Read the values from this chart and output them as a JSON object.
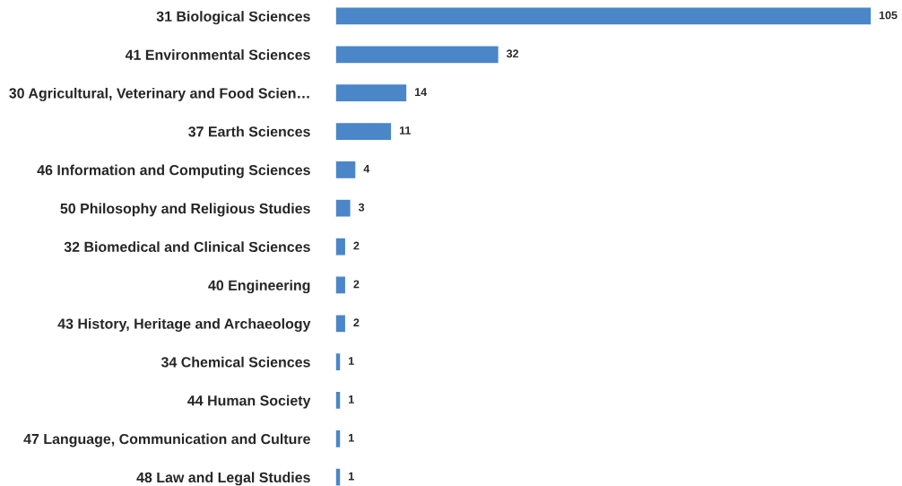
{
  "chart_data": {
    "type": "bar",
    "orientation": "horizontal",
    "categories": [
      "31 Biological Sciences",
      "41 Environmental Sciences",
      "30 Agricultural, Veterinary and Food Scien…",
      "37 Earth Sciences",
      "46 Information and Computing Sciences",
      "50 Philosophy and Religious Studies",
      "32 Biomedical and Clinical Sciences",
      "40 Engineering",
      "43 History, Heritage and Archaeology",
      "34 Chemical Sciences",
      "44 Human Society",
      "47 Language, Communication and Culture",
      "48 Law and Legal Studies"
    ],
    "values": [
      105,
      32,
      14,
      11,
      4,
      3,
      2,
      2,
      2,
      1,
      1,
      1,
      1
    ],
    "color": "#4a86c8",
    "data_labels": true
  }
}
